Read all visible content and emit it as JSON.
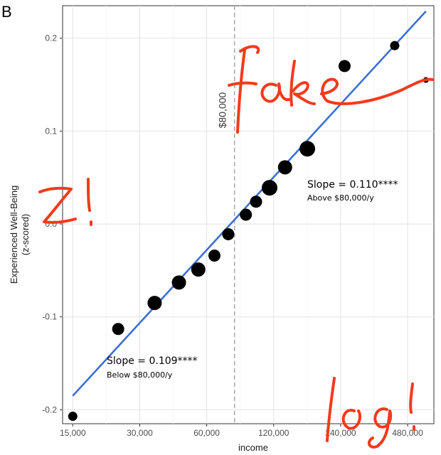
{
  "panel_label": "B",
  "chart_data": {
    "type": "scatter",
    "xlabel": "income",
    "ylabel": "Experienced Well-Being",
    "ylabel_sub": "(z-scored)",
    "x_scale": "log",
    "xlim": [
      13500,
      630000
    ],
    "ylim": [
      -0.215,
      0.235
    ],
    "x_ticks": [
      15000,
      30000,
      60000,
      120000,
      240000,
      480000
    ],
    "x_tick_labels": [
      "15,000",
      "30,000",
      "60,000",
      "120,000",
      "240,000",
      "480,000"
    ],
    "y_ticks": [
      -0.2,
      -0.1,
      0.0,
      0.1,
      0.2
    ],
    "y_tick_labels": [
      "-0.2",
      "-0.1",
      "0.0",
      "0.1",
      "0.2"
    ],
    "grid": true,
    "points": [
      {
        "x": 15000,
        "y": -0.207,
        "size": "small"
      },
      {
        "x": 24000,
        "y": -0.113,
        "size": "medium"
      },
      {
        "x": 35000,
        "y": -0.085,
        "size": "large"
      },
      {
        "x": 45000,
        "y": -0.063,
        "size": "large"
      },
      {
        "x": 55000,
        "y": -0.049,
        "size": "large"
      },
      {
        "x": 65000,
        "y": -0.034,
        "size": "medium"
      },
      {
        "x": 75000,
        "y": -0.011,
        "size": "medium"
      },
      {
        "x": 90000,
        "y": 0.01,
        "size": "medium"
      },
      {
        "x": 100000,
        "y": 0.024,
        "size": "medium"
      },
      {
        "x": 115000,
        "y": 0.039,
        "size": "xlarge"
      },
      {
        "x": 135000,
        "y": 0.061,
        "size": "large"
      },
      {
        "x": 170000,
        "y": 0.081,
        "size": "xlarge"
      },
      {
        "x": 250000,
        "y": 0.17,
        "size": "medium"
      },
      {
        "x": 420000,
        "y": 0.192,
        "size": "small"
      },
      {
        "x": 580000,
        "y": 0.155,
        "size": "tiny"
      }
    ],
    "fit_line": {
      "x": [
        15000,
        580000
      ],
      "y": [
        -0.185,
        0.229
      ],
      "color": "#3b6fd6"
    },
    "reference_line": {
      "x": 80000,
      "label": "$80,000"
    },
    "annotations": [
      {
        "title": "Slope = 0.110****",
        "subtitle": "Above $80,000/y"
      },
      {
        "title": "Slope = 0.109****",
        "subtitle": "Below $80,000/y"
      }
    ]
  },
  "handwriting": {
    "fake": "fake",
    "z": "z!",
    "log": "log!",
    "color": "#f23a1c"
  }
}
